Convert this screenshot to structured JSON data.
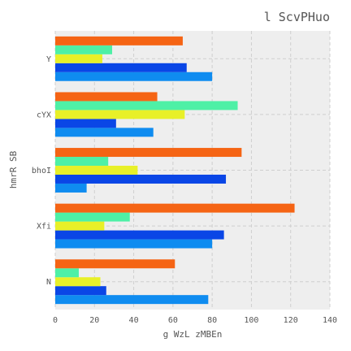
{
  "chart_data": {
    "type": "bar",
    "orientation": "horizontal",
    "title": "l ScvPHuo",
    "xlabel": "g WzL zMBEn",
    "ylabel": "hmrR SB",
    "categories": [
      "N",
      "Xfi",
      "bhoI",
      "cYX",
      "Y"
    ],
    "xlim": [
      0,
      140
    ],
    "xticks": [
      0,
      20,
      40,
      60,
      80,
      100,
      120,
      140
    ],
    "grid": true,
    "series": [
      {
        "color": "#0f8cf0",
        "values": [
          78,
          80,
          16,
          50,
          80
        ]
      },
      {
        "color": "#0a46e6",
        "values": [
          26,
          86,
          87,
          31,
          67
        ]
      },
      {
        "color": "#e8f028",
        "values": [
          23,
          25,
          42,
          66,
          24
        ]
      },
      {
        "color": "#4ef0a6",
        "values": [
          12,
          38,
          27,
          93,
          29
        ]
      },
      {
        "color": "#f56414",
        "values": [
          61,
          122,
          95,
          52,
          65
        ]
      }
    ]
  }
}
